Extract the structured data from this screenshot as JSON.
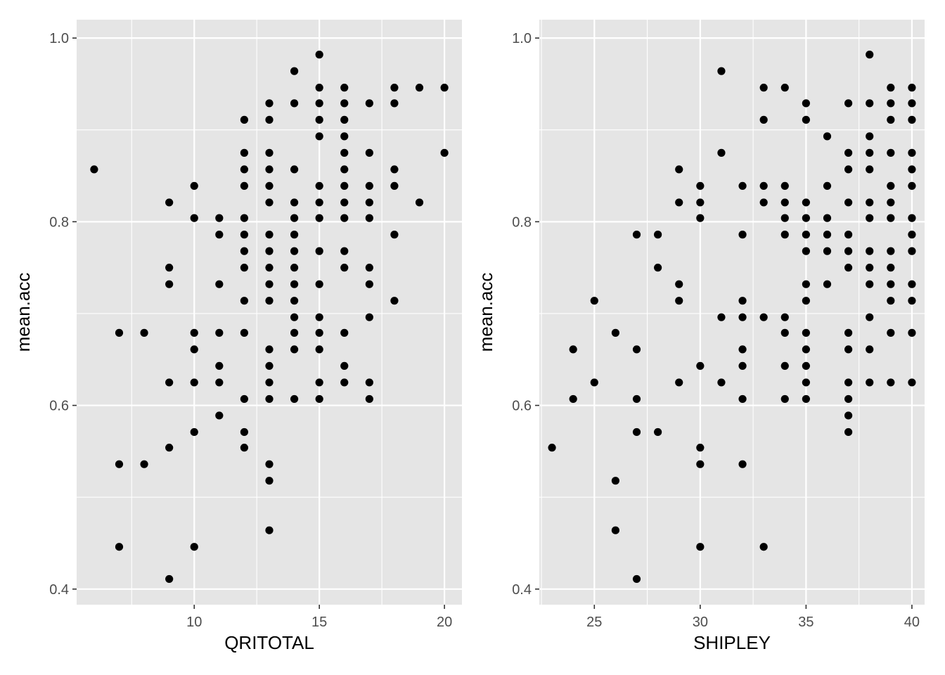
{
  "chart_data": [
    {
      "type": "scatter",
      "xlabel": "QRITOTAL",
      "ylabel": "mean.acc",
      "xlim": [
        5.3,
        20.7
      ],
      "ylim": [
        0.383,
        1.02
      ],
      "x_ticks": [
        10,
        15,
        20
      ],
      "x_tick_labels": [
        "10",
        "15",
        "20"
      ],
      "y_ticks": [
        0.4,
        0.6,
        0.8,
        1.0
      ],
      "y_tick_labels": [
        "0.4",
        "0.6",
        "0.8",
        "1.0"
      ],
      "grid": true,
      "point_color": "#000000",
      "points": [
        [
          6,
          0.857
        ],
        [
          7,
          0.679
        ],
        [
          7,
          0.536
        ],
        [
          7,
          0.446
        ],
        [
          8,
          0.679
        ],
        [
          8,
          0.536
        ],
        [
          9,
          0.821
        ],
        [
          9,
          0.75
        ],
        [
          9,
          0.732
        ],
        [
          9,
          0.625
        ],
        [
          9,
          0.554
        ],
        [
          9,
          0.411
        ],
        [
          10,
          0.839
        ],
        [
          10,
          0.804
        ],
        [
          10,
          0.679
        ],
        [
          10,
          0.661
        ],
        [
          10,
          0.625
        ],
        [
          10,
          0.571
        ],
        [
          10,
          0.446
        ],
        [
          11,
          0.804
        ],
        [
          11,
          0.786
        ],
        [
          11,
          0.732
        ],
        [
          11,
          0.679
        ],
        [
          11,
          0.643
        ],
        [
          11,
          0.625
        ],
        [
          11,
          0.589
        ],
        [
          12,
          0.911
        ],
        [
          12,
          0.875
        ],
        [
          12,
          0.857
        ],
        [
          12,
          0.839
        ],
        [
          12,
          0.804
        ],
        [
          12,
          0.786
        ],
        [
          12,
          0.768
        ],
        [
          12,
          0.75
        ],
        [
          12,
          0.714
        ],
        [
          12,
          0.679
        ],
        [
          12,
          0.607
        ],
        [
          12,
          0.571
        ],
        [
          12,
          0.554
        ],
        [
          13,
          0.929
        ],
        [
          13,
          0.911
        ],
        [
          13,
          0.875
        ],
        [
          13,
          0.857
        ],
        [
          13,
          0.839
        ],
        [
          13,
          0.821
        ],
        [
          13,
          0.786
        ],
        [
          13,
          0.768
        ],
        [
          13,
          0.75
        ],
        [
          13,
          0.732
        ],
        [
          13,
          0.714
        ],
        [
          13,
          0.661
        ],
        [
          13,
          0.643
        ],
        [
          13,
          0.625
        ],
        [
          13,
          0.607
        ],
        [
          13,
          0.536
        ],
        [
          13,
          0.518
        ],
        [
          13,
          0.464
        ],
        [
          14,
          0.964
        ],
        [
          14,
          0.929
        ],
        [
          14,
          0.857
        ],
        [
          14,
          0.821
        ],
        [
          14,
          0.804
        ],
        [
          14,
          0.786
        ],
        [
          14,
          0.768
        ],
        [
          14,
          0.75
        ],
        [
          14,
          0.732
        ],
        [
          14,
          0.714
        ],
        [
          14,
          0.696
        ],
        [
          14,
          0.679
        ],
        [
          14,
          0.661
        ],
        [
          14,
          0.607
        ],
        [
          15,
          0.982
        ],
        [
          15,
          0.946
        ],
        [
          15,
          0.929
        ],
        [
          15,
          0.911
        ],
        [
          15,
          0.893
        ],
        [
          15,
          0.839
        ],
        [
          15,
          0.821
        ],
        [
          15,
          0.804
        ],
        [
          15,
          0.768
        ],
        [
          15,
          0.732
        ],
        [
          15,
          0.696
        ],
        [
          15,
          0.679
        ],
        [
          15,
          0.661
        ],
        [
          15,
          0.625
        ],
        [
          15,
          0.607
        ],
        [
          16,
          0.946
        ],
        [
          16,
          0.929
        ],
        [
          16,
          0.911
        ],
        [
          16,
          0.893
        ],
        [
          16,
          0.875
        ],
        [
          16,
          0.857
        ],
        [
          16,
          0.839
        ],
        [
          16,
          0.821
        ],
        [
          16,
          0.804
        ],
        [
          16,
          0.768
        ],
        [
          16,
          0.75
        ],
        [
          16,
          0.679
        ],
        [
          16,
          0.643
        ],
        [
          16,
          0.625
        ],
        [
          17,
          0.929
        ],
        [
          17,
          0.875
        ],
        [
          17,
          0.839
        ],
        [
          17,
          0.821
        ],
        [
          17,
          0.804
        ],
        [
          17,
          0.75
        ],
        [
          17,
          0.732
        ],
        [
          17,
          0.696
        ],
        [
          17,
          0.625
        ],
        [
          17,
          0.607
        ],
        [
          18,
          0.946
        ],
        [
          18,
          0.929
        ],
        [
          18,
          0.857
        ],
        [
          18,
          0.839
        ],
        [
          18,
          0.786
        ],
        [
          18,
          0.714
        ],
        [
          19,
          0.946
        ],
        [
          19,
          0.821
        ],
        [
          20,
          0.946
        ],
        [
          20,
          0.875
        ]
      ]
    },
    {
      "type": "scatter",
      "xlabel": "SHIPLEY",
      "ylabel": "mean.acc",
      "xlim": [
        22.4,
        40.6
      ],
      "ylim": [
        0.383,
        1.02
      ],
      "x_ticks": [
        25,
        30,
        35,
        40
      ],
      "x_tick_labels": [
        "25",
        "30",
        "35",
        "40"
      ],
      "y_ticks": [
        0.4,
        0.6,
        0.8,
        1.0
      ],
      "y_tick_labels": [
        "0.4",
        "0.6",
        "0.8",
        "1.0"
      ],
      "grid": true,
      "point_color": "#000000",
      "points": [
        [
          23,
          0.554
        ],
        [
          24,
          0.661
        ],
        [
          24,
          0.607
        ],
        [
          25,
          0.714
        ],
        [
          25,
          0.625
        ],
        [
          26,
          0.679
        ],
        [
          26,
          0.518
        ],
        [
          26,
          0.464
        ],
        [
          27,
          0.786
        ],
        [
          27,
          0.661
        ],
        [
          27,
          0.607
        ],
        [
          27,
          0.571
        ],
        [
          27,
          0.411
        ],
        [
          28,
          0.786
        ],
        [
          28,
          0.75
        ],
        [
          28,
          0.571
        ],
        [
          29,
          0.857
        ],
        [
          29,
          0.821
        ],
        [
          29,
          0.732
        ],
        [
          29,
          0.714
        ],
        [
          29,
          0.625
        ],
        [
          30,
          0.839
        ],
        [
          30,
          0.821
        ],
        [
          30,
          0.804
        ],
        [
          30,
          0.643
        ],
        [
          30,
          0.554
        ],
        [
          30,
          0.536
        ],
        [
          30,
          0.446
        ],
        [
          31,
          0.964
        ],
        [
          31,
          0.875
        ],
        [
          31,
          0.696
        ],
        [
          31,
          0.625
        ],
        [
          32,
          0.839
        ],
        [
          32,
          0.786
        ],
        [
          32,
          0.714
        ],
        [
          32,
          0.696
        ],
        [
          32,
          0.661
        ],
        [
          32,
          0.643
        ],
        [
          32,
          0.607
        ],
        [
          32,
          0.536
        ],
        [
          33,
          0.946
        ],
        [
          33,
          0.911
        ],
        [
          33,
          0.839
        ],
        [
          33,
          0.821
        ],
        [
          33,
          0.696
        ],
        [
          33,
          0.446
        ],
        [
          34,
          0.946
        ],
        [
          34,
          0.839
        ],
        [
          34,
          0.821
        ],
        [
          34,
          0.804
        ],
        [
          34,
          0.786
        ],
        [
          34,
          0.696
        ],
        [
          34,
          0.679
        ],
        [
          34,
          0.643
        ],
        [
          34,
          0.607
        ],
        [
          35,
          0.929
        ],
        [
          35,
          0.911
        ],
        [
          35,
          0.821
        ],
        [
          35,
          0.804
        ],
        [
          35,
          0.786
        ],
        [
          35,
          0.768
        ],
        [
          35,
          0.732
        ],
        [
          35,
          0.714
        ],
        [
          35,
          0.679
        ],
        [
          35,
          0.661
        ],
        [
          35,
          0.643
        ],
        [
          35,
          0.625
        ],
        [
          35,
          0.607
        ],
        [
          36,
          0.893
        ],
        [
          36,
          0.839
        ],
        [
          36,
          0.804
        ],
        [
          36,
          0.786
        ],
        [
          36,
          0.768
        ],
        [
          36,
          0.732
        ],
        [
          37,
          0.929
        ],
        [
          37,
          0.875
        ],
        [
          37,
          0.857
        ],
        [
          37,
          0.821
        ],
        [
          37,
          0.786
        ],
        [
          37,
          0.768
        ],
        [
          37,
          0.75
        ],
        [
          37,
          0.679
        ],
        [
          37,
          0.661
        ],
        [
          37,
          0.625
        ],
        [
          37,
          0.607
        ],
        [
          37,
          0.589
        ],
        [
          37,
          0.571
        ],
        [
          38,
          0.982
        ],
        [
          38,
          0.929
        ],
        [
          38,
          0.893
        ],
        [
          38,
          0.875
        ],
        [
          38,
          0.857
        ],
        [
          38,
          0.821
        ],
        [
          38,
          0.804
        ],
        [
          38,
          0.768
        ],
        [
          38,
          0.75
        ],
        [
          38,
          0.732
        ],
        [
          38,
          0.696
        ],
        [
          38,
          0.661
        ],
        [
          38,
          0.625
        ],
        [
          39,
          0.946
        ],
        [
          39,
          0.929
        ],
        [
          39,
          0.911
        ],
        [
          39,
          0.875
        ],
        [
          39,
          0.839
        ],
        [
          39,
          0.821
        ],
        [
          39,
          0.804
        ],
        [
          39,
          0.768
        ],
        [
          39,
          0.75
        ],
        [
          39,
          0.732
        ],
        [
          39,
          0.714
        ],
        [
          39,
          0.679
        ],
        [
          39,
          0.625
        ],
        [
          40,
          0.946
        ],
        [
          40,
          0.929
        ],
        [
          40,
          0.911
        ],
        [
          40,
          0.875
        ],
        [
          40,
          0.857
        ],
        [
          40,
          0.839
        ],
        [
          40,
          0.804
        ],
        [
          40,
          0.786
        ],
        [
          40,
          0.768
        ],
        [
          40,
          0.732
        ],
        [
          40,
          0.714
        ],
        [
          40,
          0.679
        ],
        [
          40,
          0.625
        ]
      ]
    }
  ]
}
